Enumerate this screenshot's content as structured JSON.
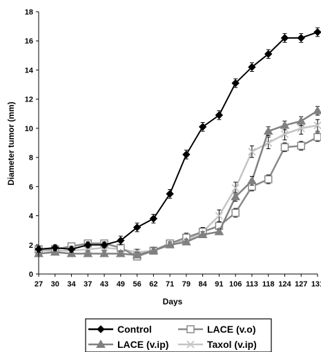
{
  "chart_data": {
    "type": "line",
    "title": "",
    "xlabel": "Days",
    "ylabel": "Diameter tumor (mm)",
    "ylim": [
      0,
      18
    ],
    "yticks": [
      0,
      2,
      4,
      6,
      8,
      10,
      12,
      14,
      16,
      18
    ],
    "x": [
      "27",
      "30",
      "34",
      "37",
      "43",
      "49",
      "56",
      "62",
      "71",
      "79",
      "84",
      "91",
      "106",
      "113",
      "118",
      "124",
      "127",
      "131"
    ],
    "legend_position": "bottom",
    "grid": false,
    "series": [
      {
        "name": "Control",
        "color": "#000000",
        "marker": "diamond",
        "values": [
          1.7,
          1.8,
          1.7,
          2.0,
          2.0,
          2.3,
          3.2,
          3.8,
          5.5,
          8.2,
          10.1,
          10.9,
          13.1,
          14.2,
          15.1,
          16.2,
          16.2,
          16.6
        ],
        "errors": [
          0.2,
          0.2,
          0.2,
          0.2,
          0.2,
          0.3,
          0.3,
          0.3,
          0.3,
          0.3,
          0.3,
          0.3,
          0.3,
          0.3,
          0.3,
          0.3,
          0.3,
          0.3
        ]
      },
      {
        "name": "LACE (v.o)",
        "color": "#888888",
        "marker": "square-open",
        "values": [
          1.7,
          1.7,
          1.9,
          2.1,
          2.1,
          1.8,
          1.2,
          1.6,
          2.1,
          2.5,
          2.9,
          3.3,
          4.2,
          6.0,
          6.5,
          8.7,
          8.8,
          9.4
        ],
        "errors": [
          0.2,
          0.2,
          0.2,
          0.2,
          0.2,
          0.2,
          0.2,
          0.2,
          0.2,
          0.3,
          0.3,
          0.3,
          0.3,
          0.3,
          0.3,
          0.3,
          0.3,
          0.3
        ]
      },
      {
        "name": "LACE (v.ip)",
        "color": "#808080",
        "marker": "triangle",
        "values": [
          1.4,
          1.5,
          1.4,
          1.4,
          1.4,
          1.4,
          1.3,
          1.6,
          2.0,
          2.2,
          2.7,
          2.9,
          5.3,
          6.4,
          9.8,
          10.2,
          10.5,
          11.2
        ],
        "errors": [
          0.2,
          0.2,
          0.2,
          0.2,
          0.2,
          0.2,
          0.2,
          0.2,
          0.2,
          0.2,
          0.2,
          0.2,
          0.3,
          0.3,
          0.3,
          0.3,
          0.3,
          0.3
        ]
      },
      {
        "name": "Taxol (v.ip)",
        "color": "#c4c4c4",
        "marker": "x",
        "values": [
          1.6,
          1.6,
          1.6,
          1.7,
          1.8,
          1.7,
          1.5,
          1.6,
          2.1,
          2.3,
          2.9,
          4.0,
          5.9,
          8.4,
          9.0,
          9.6,
          10.0,
          10.2
        ],
        "errors": [
          0.2,
          0.2,
          0.2,
          0.2,
          0.2,
          0.2,
          0.2,
          0.2,
          0.2,
          0.2,
          0.3,
          0.4,
          0.4,
          0.4,
          0.4,
          0.4,
          0.4,
          0.4
        ]
      }
    ]
  }
}
